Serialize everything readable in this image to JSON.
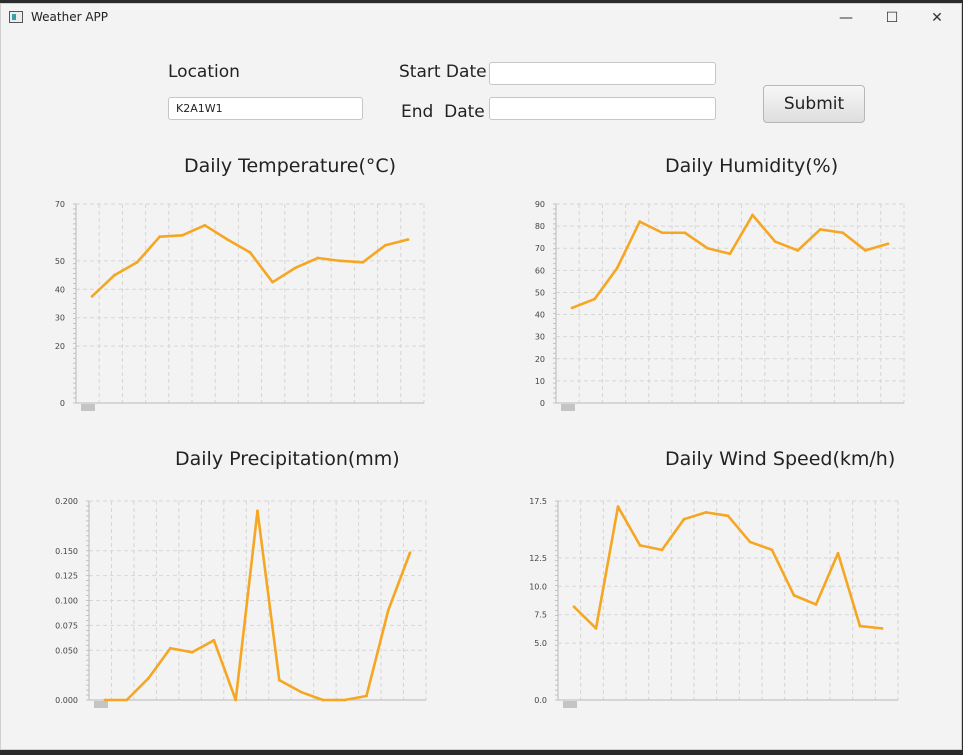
{
  "window": {
    "title": "Weather APP",
    "controls": {
      "minimize": "—",
      "maximize": "☐",
      "close": "✕"
    }
  },
  "form": {
    "location_label": "Location",
    "location_value": "K2A1W1",
    "start_label": "Start Date",
    "start_value": "",
    "end_label": "End  Date",
    "end_value": "",
    "submit_label": "Submit"
  },
  "colors": {
    "series": "#f5a623",
    "grid": "#d6d6d6",
    "axis": "#b8b8b8"
  },
  "chart_data": [
    {
      "id": "temperature",
      "type": "line",
      "title": "Daily Temperature(°C)",
      "x": [
        1,
        2,
        3,
        4,
        5,
        6,
        7,
        8,
        9,
        10,
        11,
        12,
        13,
        14,
        15
      ],
      "y": [
        37.5,
        45,
        49.5,
        58.5,
        59,
        62.5,
        57.5,
        53,
        42.5,
        47.5,
        51,
        50,
        49.5,
        55.5,
        57.5
      ],
      "ylim": [
        0,
        70
      ],
      "yticks": [
        0,
        20,
        30,
        40,
        50,
        70
      ]
    },
    {
      "id": "humidity",
      "type": "line",
      "title": "Daily Humidity(%)",
      "x": [
        1,
        2,
        3,
        4,
        5,
        6,
        7,
        8,
        9,
        10,
        11,
        12,
        13,
        14,
        15
      ],
      "y": [
        43,
        47,
        61,
        82,
        77,
        77,
        70,
        67.5,
        85,
        73,
        69,
        78.5,
        77,
        69,
        72
      ],
      "ylim": [
        0,
        90
      ],
      "yticks": [
        0,
        10,
        20,
        30,
        40,
        50,
        60,
        70,
        80,
        90
      ]
    },
    {
      "id": "precipitation",
      "type": "line",
      "title": "Daily Precipitation(mm)",
      "x": [
        1,
        2,
        3,
        4,
        5,
        6,
        7,
        8,
        9,
        10,
        11,
        12,
        13,
        14,
        15
      ],
      "y": [
        0,
        0,
        0.022,
        0.052,
        0.048,
        0.06,
        0,
        0.19,
        0.02,
        0.008,
        0,
        0,
        0.004,
        0.09,
        0.148
      ],
      "ylim": [
        0,
        0.2
      ],
      "yticks": [
        0.0,
        0.05,
        0.075,
        0.1,
        0.125,
        0.15,
        0.2
      ],
      "ytick_labels": [
        "0.000",
        "0.050",
        "0.075",
        "0.100",
        "0.125",
        "0.150",
        "0.200"
      ]
    },
    {
      "id": "wind",
      "type": "line",
      "title": "Daily Wind Speed(km/h)",
      "x": [
        1,
        2,
        3,
        4,
        5,
        6,
        7,
        8,
        9,
        10,
        11,
        12,
        13,
        14,
        15
      ],
      "y": [
        8.2,
        6.3,
        17,
        13.6,
        13.2,
        15.9,
        16.5,
        16.2,
        13.9,
        13.2,
        9.2,
        8.4,
        12.9,
        6.5,
        6.3
      ],
      "ylim": [
        0,
        17.5
      ],
      "yticks": [
        0,
        5,
        7.5,
        10,
        12.5,
        17.5
      ],
      "ytick_labels": [
        "0.0",
        "5.0",
        "7.5",
        "10.0",
        "12.5",
        "17.5"
      ]
    }
  ]
}
